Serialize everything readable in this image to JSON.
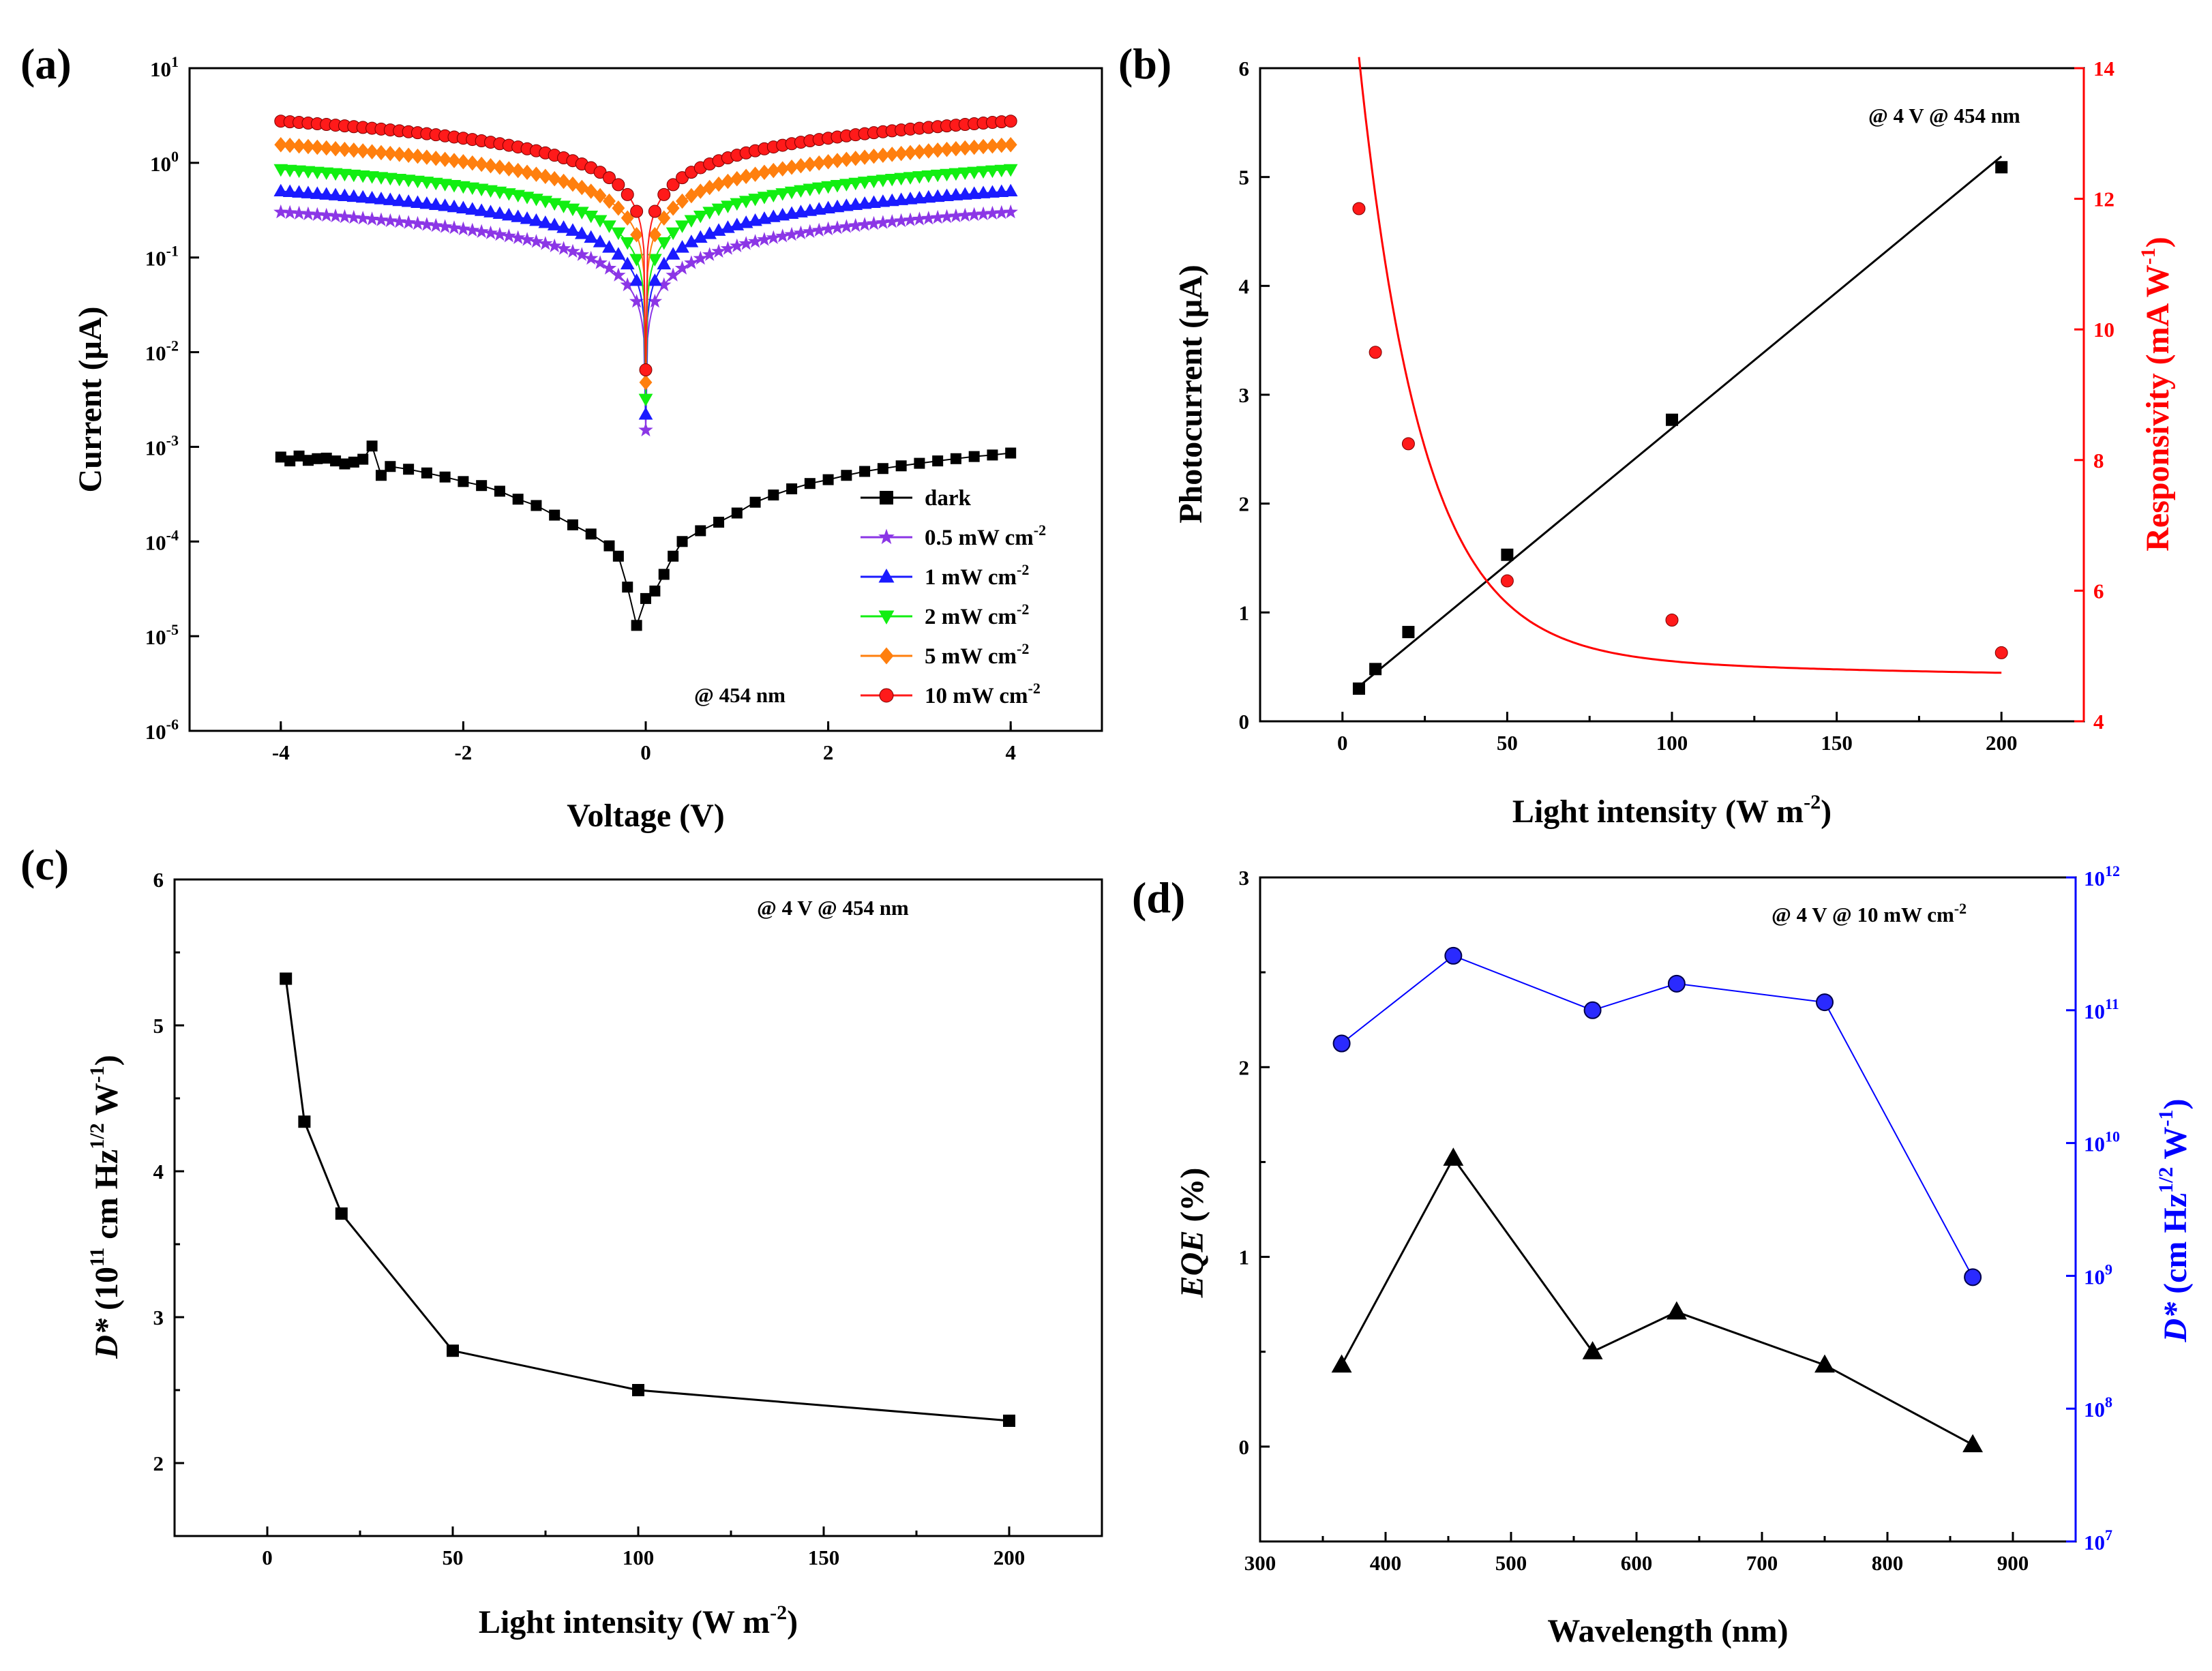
{
  "panel_labels": [
    "(a)",
    "(b)",
    "(c)",
    "(d)"
  ],
  "chart_data": [
    {
      "panel": "(a)",
      "type": "line",
      "yscale": "log",
      "xlabel": "Voltage (V)",
      "ylabel": "Current (μA)",
      "xlim": [
        -5,
        5
      ],
      "ylim_exp": [
        -6,
        1
      ],
      "xticks": [
        -4,
        -2,
        0,
        2,
        4
      ],
      "xtick_labels": [
        "-4",
        "-2",
        "0",
        "2",
        "4"
      ],
      "ytick_exp": [
        -6,
        -5,
        -4,
        -3,
        -2,
        -1,
        0,
        1
      ],
      "annotation": "@ 454 nm",
      "legend_title": "",
      "legend_position": "bottom-right",
      "series": [
        {
          "name": "dark",
          "label_base": "dark",
          "label_sup": "",
          "color": "#000000",
          "marker": "square",
          "x": [
            -4.0,
            -3.9,
            -3.8,
            -3.7,
            -3.6,
            -3.5,
            -3.4,
            -3.3,
            -3.2,
            -3.1,
            -3.0,
            -2.9,
            -2.8,
            -2.6,
            -2.4,
            -2.2,
            -2.0,
            -1.8,
            -1.6,
            -1.4,
            -1.2,
            -1.0,
            -0.8,
            -0.6,
            -0.4,
            -0.3,
            -0.2,
            -0.1,
            0.0,
            0.1,
            0.2,
            0.3,
            0.4,
            0.6,
            0.8,
            1.0,
            1.2,
            1.4,
            1.6,
            1.8,
            2.0,
            2.2,
            2.4,
            2.6,
            2.8,
            3.0,
            3.2,
            3.4,
            3.6,
            3.8,
            4.0
          ],
          "y": [
            0.00078,
            0.00071,
            0.0008,
            0.00072,
            0.00075,
            0.00076,
            0.00071,
            0.00066,
            0.00069,
            0.00074,
            0.00102,
            0.0005,
            0.00062,
            0.00058,
            0.00053,
            0.00048,
            0.00043,
            0.00039,
            0.00034,
            0.00028,
            0.00024,
            0.00019,
            0.00015,
            0.00012,
            9e-05,
            7e-05,
            3.3e-05,
            1.3e-05,
            2.5e-05,
            3e-05,
            4.5e-05,
            7e-05,
            0.0001,
            0.00013,
            0.00016,
            0.0002,
            0.00026,
            0.00031,
            0.00036,
            0.00041,
            0.00045,
            0.0005,
            0.00055,
            0.00059,
            0.00063,
            0.00067,
            0.00071,
            0.00075,
            0.00079,
            0.00082,
            0.00086
          ]
        },
        {
          "name": "0.5 mW cm-2",
          "label_base": "0.5 mW cm",
          "label_sup": "-2",
          "color": "#8b36e6",
          "marker": "star",
          "amp": 0.3,
          "vmin": 0.0015
        },
        {
          "name": "1 mW cm-2",
          "label_base": "1 mW cm",
          "label_sup": "-2",
          "color": "#1a1aff",
          "marker": "triangle-up",
          "amp": 0.5,
          "vmin": 0.0022
        },
        {
          "name": "2 mW cm-2",
          "label_base": "2 mW cm",
          "label_sup": "-2",
          "color": "#11ee11",
          "marker": "triangle-down",
          "amp": 0.85,
          "vmin": 0.0032
        },
        {
          "name": "5 mW cm-2",
          "label_base": "5 mW cm",
          "label_sup": "-2",
          "color": "#ff7f0e",
          "marker": "diamond",
          "amp": 1.55,
          "vmin": 0.0048
        },
        {
          "name": "10 mW cm-2",
          "label_base": "10 mW cm",
          "label_sup": "-2",
          "color": "#ff1a1a",
          "marker": "circle",
          "amp": 2.75,
          "vmin": 0.0065
        }
      ]
    },
    {
      "panel": "(b)",
      "type": "scatter",
      "xlabel": "Light intensity (W m",
      "xlabel_sup": "-2",
      "xlabel_end": ")",
      "ylabel": "Photocurrent (μA)",
      "y2label": "Responsivity (mA W",
      "y2label_sup": "-1",
      "y2label_end": ")",
      "xlim": [
        -25,
        225
      ],
      "ylim": [
        0,
        6
      ],
      "y2lim": [
        4,
        14
      ],
      "xticks": [
        0,
        50,
        100,
        150,
        200
      ],
      "yticks": [
        0,
        1,
        2,
        3,
        4,
        5,
        6
      ],
      "y2ticks": [
        4,
        6,
        8,
        10,
        12,
        14
      ],
      "annotation": "@ 4 V @ 454 nm",
      "x": [
        5,
        10,
        20,
        50,
        100,
        200
      ],
      "photocurrent": [
        0.3,
        0.48,
        0.82,
        1.53,
        2.77,
        5.09
      ],
      "photocurrent_fit": {
        "x": [
          5,
          200
        ],
        "y": [
          0.32,
          5.19
        ]
      },
      "responsivity": [
        11.85,
        9.65,
        8.25,
        6.15,
        5.55,
        5.05
      ],
      "colors": {
        "left": "#000000",
        "right": "#ff0000"
      }
    },
    {
      "panel": "(c)",
      "type": "line",
      "xlabel": "Light intensity (W m",
      "xlabel_sup": "-2",
      "xlabel_end": ")",
      "ylabel_italic": "D*",
      "ylabel_rest1": " (10",
      "ylabel_sup1": "11",
      "ylabel_rest2": " cm Hz",
      "ylabel_sup2": "1/2",
      "ylabel_rest3": " W",
      "ylabel_sup3": "-1",
      "ylabel_end": ")",
      "xlim": [
        -25,
        225
      ],
      "ylim": [
        1.5,
        6
      ],
      "xticks": [
        0,
        50,
        100,
        150,
        200
      ],
      "yticks": [
        2,
        3,
        4,
        5,
        6
      ],
      "annotation": "@ 4 V @ 454 nm",
      "x": [
        5,
        10,
        20,
        50,
        100,
        200
      ],
      "values": [
        5.32,
        4.34,
        3.71,
        2.77,
        2.5,
        2.29
      ]
    },
    {
      "panel": "(d)",
      "type": "line",
      "xlabel": "Wavelength (nm)",
      "ylabel_italic": "EQE",
      "ylabel_rest": " (%)",
      "y2label_italic": "D*",
      "y2label_rest": " (cm Hz",
      "y2label_sup1": "1/2",
      "y2label_mid": " W",
      "y2label_sup2": "-1",
      "y2label_end": ")",
      "xlim": [
        300,
        950
      ],
      "ylim": [
        -0.5,
        3
      ],
      "y2lim_exp": [
        7,
        12
      ],
      "xticks": [
        300,
        400,
        500,
        600,
        700,
        800,
        900
      ],
      "yticks": [
        0,
        1,
        2,
        3
      ],
      "y2tick_exp": [
        7,
        8,
        9,
        10,
        11,
        12
      ],
      "annotation_base": "@ 4 V @ 10 mW cm",
      "annotation_sup": "-2",
      "x": [
        365,
        454,
        565,
        632,
        750,
        868
      ],
      "eqe": [
        0.43,
        1.52,
        0.5,
        0.71,
        0.43,
        0.01
      ],
      "dstar_exp": [
        10.75,
        11.41,
        11.0,
        11.2,
        11.06,
        8.99
      ],
      "colors": {
        "left": "#000000",
        "right": "#0000ff"
      }
    }
  ]
}
